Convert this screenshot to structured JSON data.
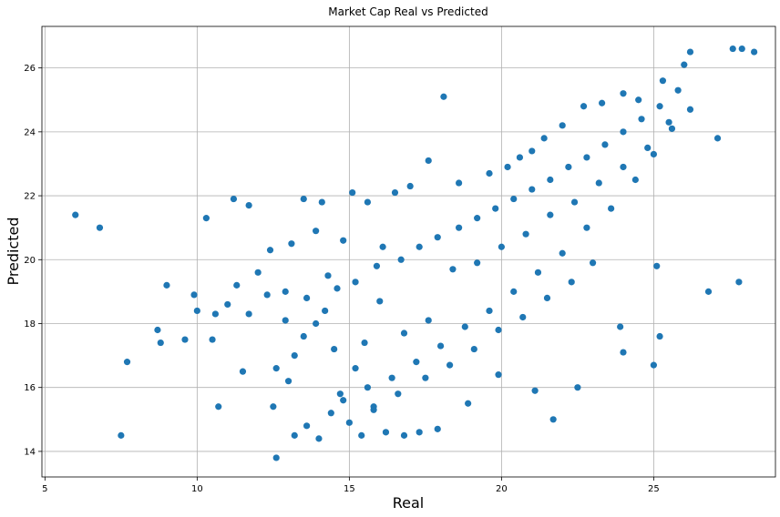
{
  "chart_data": {
    "type": "scatter",
    "title": "Market Cap Real vs Predicted",
    "xlabel": "Real",
    "ylabel": "Predicted",
    "xlim": [
      4.9,
      29.0
    ],
    "ylim": [
      13.2,
      27.3
    ],
    "xticks": [
      5,
      10,
      15,
      20,
      25
    ],
    "yticks": [
      14,
      16,
      18,
      20,
      22,
      24,
      26
    ],
    "grid": true,
    "color": "#1f77b4",
    "series": [
      {
        "points": [
          [
            6.0,
            21.4
          ],
          [
            6.8,
            21.0
          ],
          [
            7.5,
            14.5
          ],
          [
            7.7,
            16.8
          ],
          [
            8.7,
            17.8
          ],
          [
            8.8,
            17.4
          ],
          [
            9.0,
            19.2
          ],
          [
            9.6,
            17.5
          ],
          [
            9.9,
            18.9
          ],
          [
            10.0,
            18.4
          ],
          [
            10.3,
            21.3
          ],
          [
            10.5,
            17.5
          ],
          [
            10.6,
            18.3
          ],
          [
            10.7,
            15.4
          ],
          [
            11.0,
            18.6
          ],
          [
            11.2,
            21.9
          ],
          [
            11.3,
            19.2
          ],
          [
            11.5,
            16.5
          ],
          [
            11.7,
            21.7
          ],
          [
            11.7,
            18.3
          ],
          [
            12.0,
            19.6
          ],
          [
            12.3,
            18.9
          ],
          [
            12.4,
            20.3
          ],
          [
            12.5,
            15.4
          ],
          [
            12.6,
            13.8
          ],
          [
            12.9,
            19.0
          ],
          [
            13.1,
            20.5
          ],
          [
            13.5,
            21.9
          ],
          [
            13.9,
            20.9
          ],
          [
            14.1,
            21.8
          ],
          [
            14.8,
            20.6
          ],
          [
            15.1,
            22.1
          ],
          [
            15.6,
            21.8
          ],
          [
            16.1,
            20.4
          ],
          [
            16.5,
            22.1
          ],
          [
            17.0,
            22.3
          ],
          [
            17.6,
            23.1
          ],
          [
            18.1,
            25.1
          ],
          [
            18.6,
            22.4
          ],
          [
            19.6,
            22.7
          ],
          [
            20.2,
            22.9
          ],
          [
            20.6,
            23.2
          ],
          [
            21.0,
            23.4
          ],
          [
            21.4,
            23.8
          ],
          [
            22.0,
            24.2
          ],
          [
            22.7,
            24.8
          ],
          [
            23.3,
            24.9
          ],
          [
            24.0,
            25.2
          ],
          [
            24.5,
            25.0
          ],
          [
            25.3,
            25.6
          ],
          [
            26.0,
            26.1
          ],
          [
            26.2,
            26.5
          ],
          [
            27.6,
            26.6
          ],
          [
            27.9,
            26.6
          ],
          [
            28.3,
            26.5
          ],
          [
            27.1,
            23.8
          ],
          [
            26.8,
            19.0
          ],
          [
            27.8,
            19.3
          ],
          [
            25.1,
            19.8
          ],
          [
            25.0,
            16.7
          ],
          [
            25.2,
            17.6
          ],
          [
            24.0,
            17.1
          ],
          [
            23.9,
            17.9
          ],
          [
            22.5,
            16.0
          ],
          [
            21.7,
            15.0
          ],
          [
            21.1,
            15.9
          ],
          [
            19.9,
            16.4
          ],
          [
            18.9,
            15.5
          ],
          [
            17.9,
            14.7
          ],
          [
            17.3,
            14.6
          ],
          [
            16.8,
            14.5
          ],
          [
            16.2,
            14.6
          ],
          [
            15.4,
            14.5
          ],
          [
            15.0,
            14.9
          ],
          [
            14.4,
            15.2
          ],
          [
            14.0,
            14.4
          ],
          [
            13.6,
            14.8
          ],
          [
            13.2,
            14.5
          ],
          [
            14.7,
            15.8
          ],
          [
            15.8,
            15.4
          ],
          [
            12.9,
            18.1
          ],
          [
            13.2,
            17.0
          ],
          [
            13.0,
            16.2
          ],
          [
            12.6,
            16.6
          ],
          [
            13.5,
            17.6
          ],
          [
            14.3,
            19.5
          ],
          [
            14.6,
            19.1
          ],
          [
            15.2,
            19.3
          ],
          [
            15.9,
            19.8
          ],
          [
            16.7,
            20.0
          ],
          [
            17.3,
            20.4
          ],
          [
            17.9,
            20.7
          ],
          [
            18.6,
            21.0
          ],
          [
            19.2,
            21.3
          ],
          [
            19.8,
            21.6
          ],
          [
            20.4,
            21.9
          ],
          [
            21.0,
            22.2
          ],
          [
            21.6,
            22.5
          ],
          [
            22.2,
            22.9
          ],
          [
            22.8,
            23.2
          ],
          [
            23.4,
            23.6
          ],
          [
            24.0,
            24.0
          ],
          [
            24.6,
            24.4
          ],
          [
            25.2,
            24.8
          ],
          [
            25.8,
            25.3
          ],
          [
            23.6,
            21.6
          ],
          [
            22.8,
            21.0
          ],
          [
            22.0,
            20.2
          ],
          [
            21.2,
            19.6
          ],
          [
            20.4,
            19.0
          ],
          [
            19.6,
            18.4
          ],
          [
            18.8,
            17.9
          ],
          [
            18.0,
            17.3
          ],
          [
            17.2,
            16.8
          ],
          [
            16.4,
            16.3
          ],
          [
            15.6,
            16.0
          ],
          [
            14.8,
            15.6
          ],
          [
            24.4,
            22.5
          ],
          [
            25.0,
            23.3
          ],
          [
            25.6,
            24.1
          ],
          [
            26.2,
            24.7
          ],
          [
            23.0,
            19.9
          ],
          [
            22.3,
            19.3
          ],
          [
            21.5,
            18.8
          ],
          [
            20.7,
            18.2
          ],
          [
            19.9,
            17.8
          ],
          [
            19.1,
            17.2
          ],
          [
            18.3,
            16.7
          ],
          [
            17.5,
            16.3
          ],
          [
            16.6,
            15.8
          ],
          [
            15.8,
            15.3
          ],
          [
            15.2,
            16.6
          ],
          [
            14.5,
            17.2
          ],
          [
            13.9,
            18.0
          ],
          [
            13.6,
            18.8
          ],
          [
            14.2,
            18.4
          ],
          [
            15.5,
            17.4
          ],
          [
            16.0,
            18.7
          ],
          [
            16.8,
            17.7
          ],
          [
            17.6,
            18.1
          ],
          [
            18.4,
            19.7
          ],
          [
            19.2,
            19.9
          ],
          [
            20.0,
            20.4
          ],
          [
            20.8,
            20.8
          ],
          [
            21.6,
            21.4
          ],
          [
            22.4,
            21.8
          ],
          [
            23.2,
            22.4
          ],
          [
            24.0,
            22.9
          ],
          [
            24.8,
            23.5
          ],
          [
            25.5,
            24.3
          ]
        ]
      }
    ]
  }
}
